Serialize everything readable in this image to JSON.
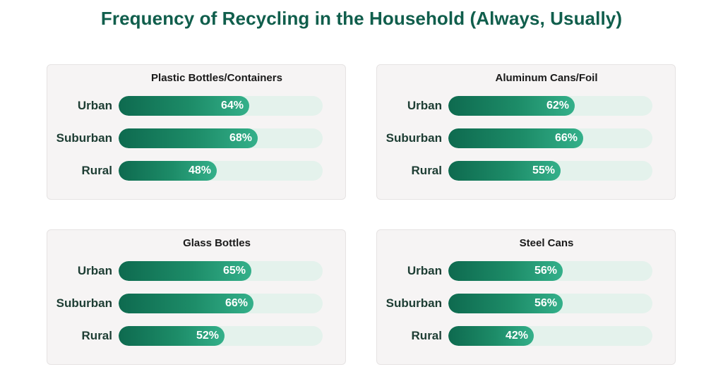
{
  "title": "Frequency of Recycling in the Household (Always, Usually)",
  "colors": {
    "title": "#105e4c",
    "fill_start": "#0e6a4f",
    "fill_end": "#34b08a",
    "track": "#e4f2ec",
    "panel_bg": "#f6f4f4"
  },
  "chart_data": [
    {
      "type": "bar",
      "orientation": "horizontal",
      "title": "Plastic Bottles/Containers",
      "categories": [
        "Urban",
        "Suburban",
        "Rural"
      ],
      "values": [
        64,
        68,
        48
      ],
      "value_labels": [
        "64%",
        "68%",
        "48%"
      ],
      "xlim": [
        0,
        100
      ]
    },
    {
      "type": "bar",
      "orientation": "horizontal",
      "title": "Aluminum Cans/Foil",
      "categories": [
        "Urban",
        "Suburban",
        "Rural"
      ],
      "values": [
        62,
        66,
        55
      ],
      "value_labels": [
        "62%",
        "66%",
        "55%"
      ],
      "xlim": [
        0,
        100
      ]
    },
    {
      "type": "bar",
      "orientation": "horizontal",
      "title": "Glass Bottles",
      "categories": [
        "Urban",
        "Suburban",
        "Rural"
      ],
      "values": [
        65,
        66,
        52
      ],
      "value_labels": [
        "65%",
        "66%",
        "52%"
      ],
      "xlim": [
        0,
        100
      ]
    },
    {
      "type": "bar",
      "orientation": "horizontal",
      "title": "Steel Cans",
      "categories": [
        "Urban",
        "Suburban",
        "Rural"
      ],
      "values": [
        56,
        56,
        42
      ],
      "value_labels": [
        "56%",
        "56%",
        "42%"
      ],
      "xlim": [
        0,
        100
      ]
    }
  ]
}
